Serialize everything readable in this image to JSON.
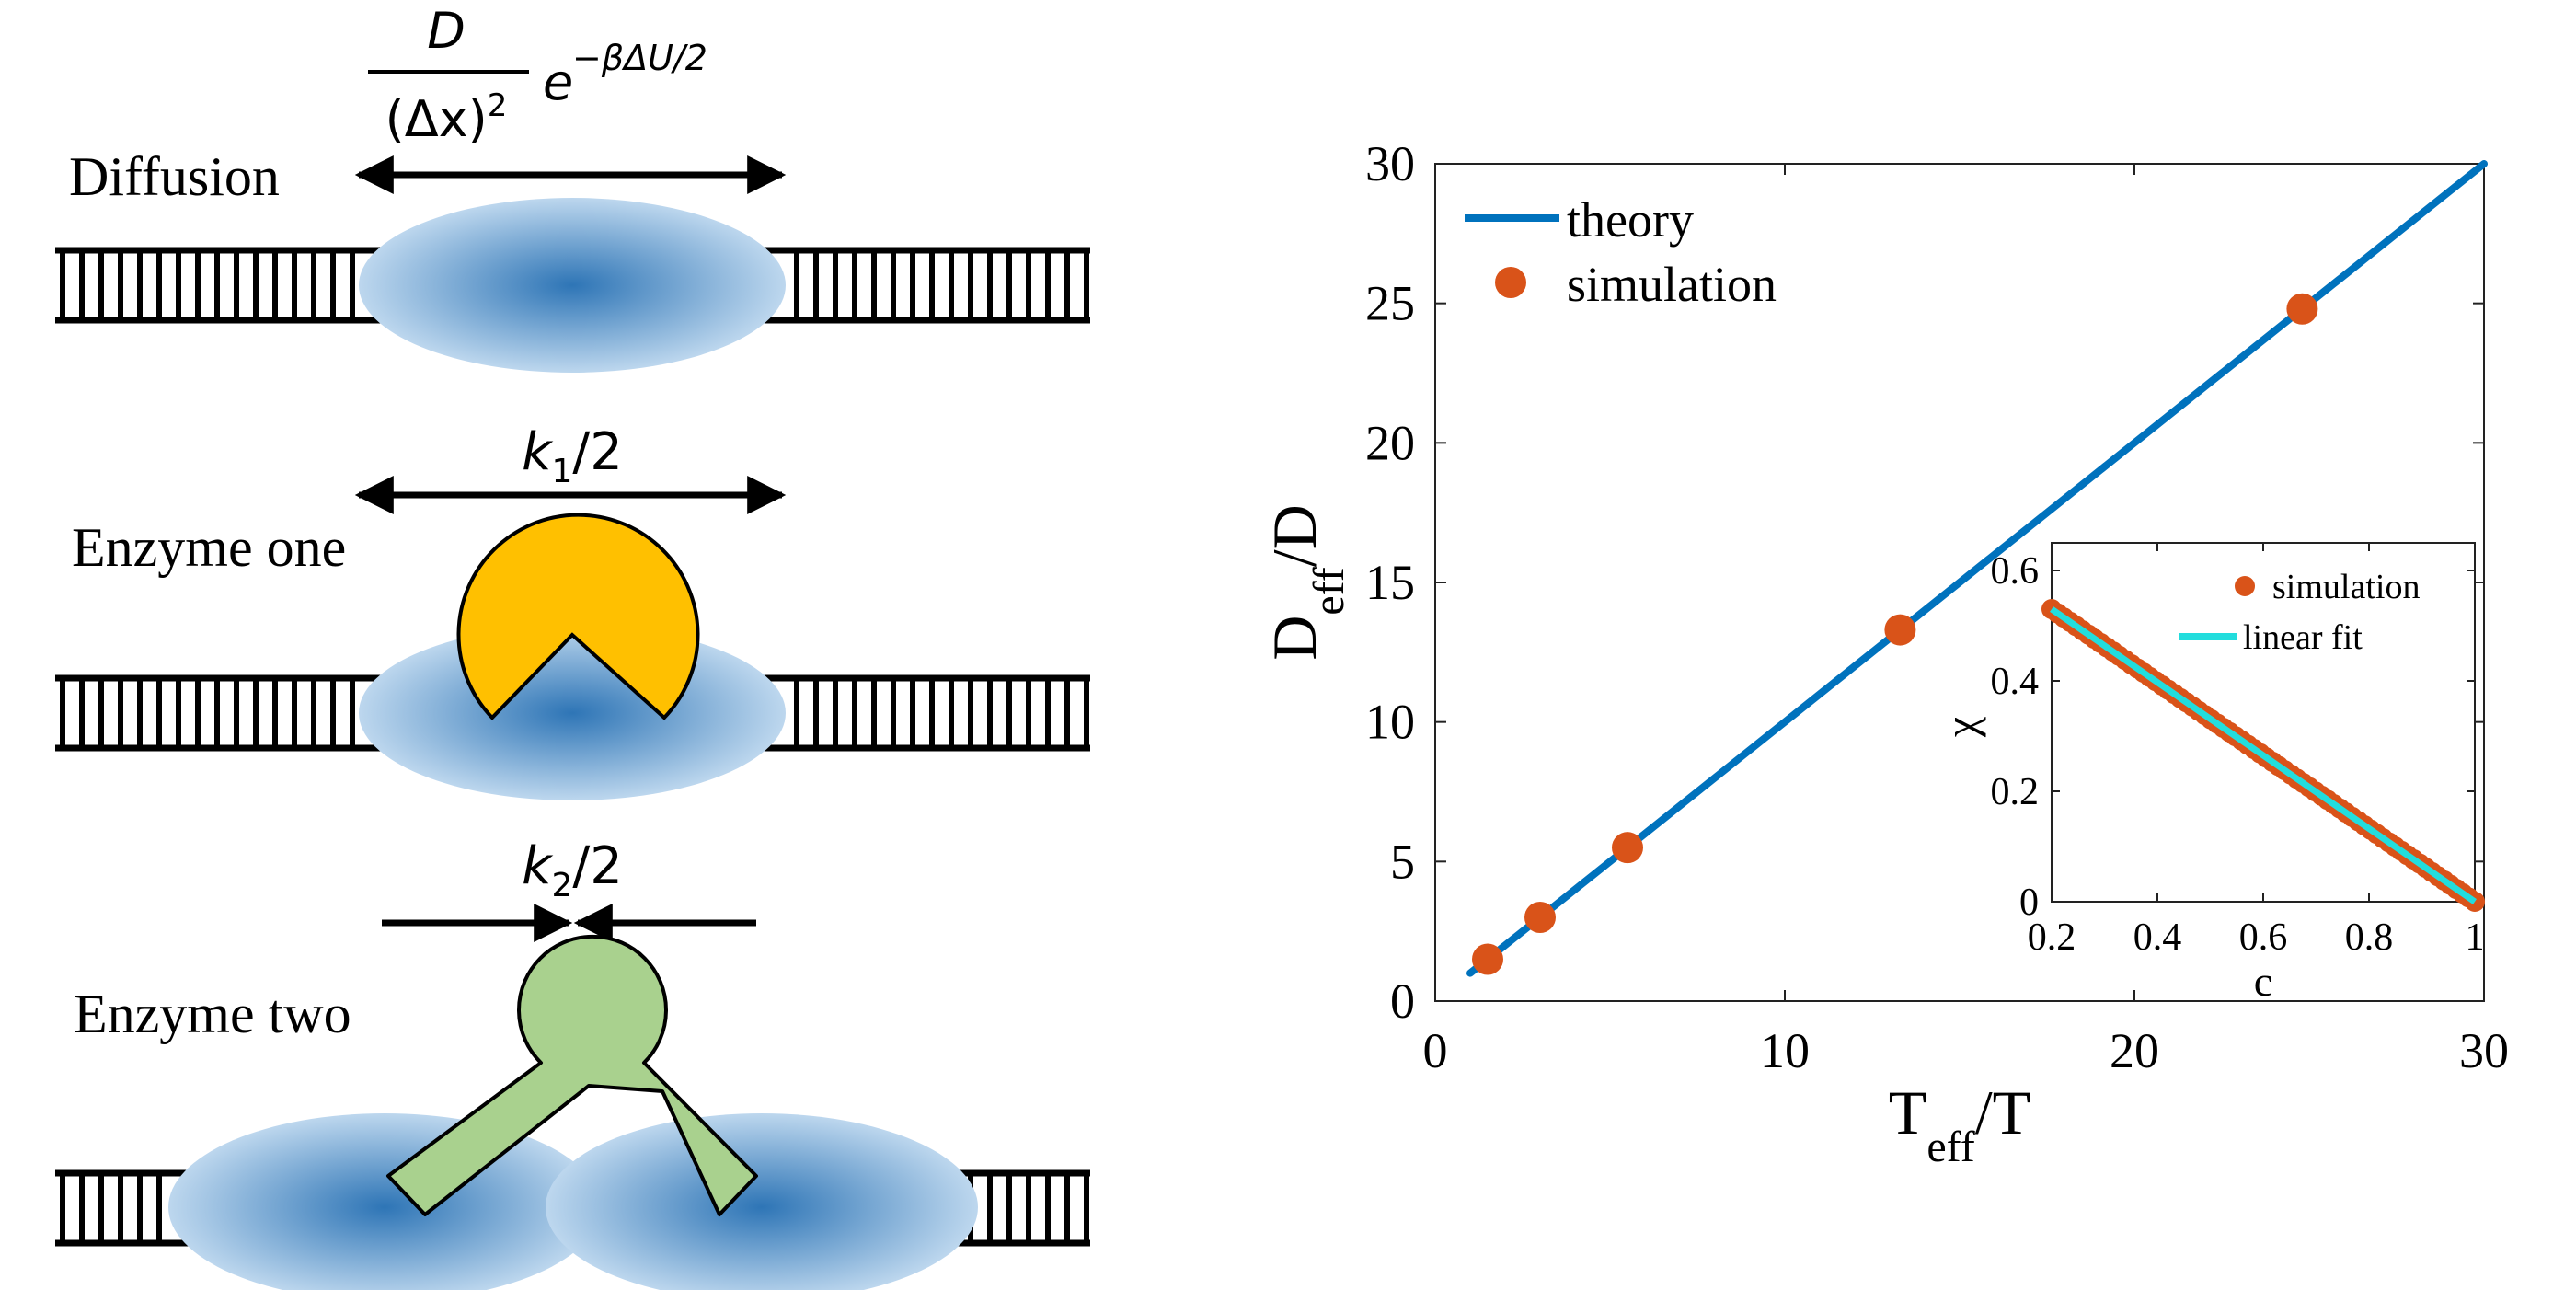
{
  "colors": {
    "theory": "#0072BD",
    "simulation": "#D95319",
    "linear_fit": "#22DDDD",
    "enzyme_one": "#FFC000",
    "enzyme_two": "#A9D18E",
    "blob_center": "#2E75B6",
    "blob_edge": "#BDD7EE"
  },
  "icons": {
    "dna_ladder": "dna-ladder-icon",
    "enzyme_one": "pacman-shape",
    "enzyme_two": "y-shape"
  },
  "schematic": {
    "rows": [
      {
        "label": "Diffusion",
        "rate_numerator": "D",
        "rate_denominator": "(Δx)",
        "rate_denominator_sup": "2",
        "rate_exp_base": "e",
        "rate_exp": "−βΔU/2",
        "arrow": "outward"
      },
      {
        "label": "Enzyme one",
        "rate_main": "k",
        "rate_sub": "1",
        "rate_tail": "/2",
        "arrow": "outward"
      },
      {
        "label": "Enzyme two",
        "rate_main": "k",
        "rate_sub": "2",
        "rate_tail": "/2",
        "arrow": "inward"
      }
    ]
  },
  "chart_data": [
    {
      "type": "line",
      "xlabel_main": "T",
      "xlabel_sub": "eff",
      "xlabel_tail": "/T",
      "ylabel_main": "D",
      "ylabel_sub": "eff",
      "ylabel_tail": "/D",
      "xlim": [
        0,
        30
      ],
      "ylim": [
        0,
        30
      ],
      "xticks": [
        0,
        10,
        20,
        30
      ],
      "yticks": [
        0,
        5,
        10,
        15,
        20,
        25,
        30
      ],
      "legend_position": "top-left",
      "series": [
        {
          "name": "theory",
          "style": "line",
          "x": [
            1,
            30
          ],
          "y": [
            1,
            30
          ]
        },
        {
          "name": "simulation",
          "style": "marker",
          "x": [
            1.5,
            3,
            5.5,
            13.3,
            24.8
          ],
          "y": [
            1.5,
            3,
            5.5,
            13.3,
            24.8
          ]
        }
      ]
    },
    {
      "type": "scatter",
      "inset": true,
      "xlabel": "c",
      "ylabel": "χ",
      "xlim": [
        0.2,
        1
      ],
      "ylim": [
        0,
        0.65
      ],
      "xticks": [
        0.2,
        0.4,
        0.6,
        0.8,
        1
      ],
      "xtick_labels": [
        "0.2",
        "0.4",
        "0.6",
        "0.8",
        "1"
      ],
      "yticks": [
        0,
        0.2,
        0.4,
        0.6
      ],
      "ytick_labels": [
        "0",
        "0.2",
        "0.4",
        "0.6"
      ],
      "legend_position": "top-right",
      "series": [
        {
          "name": "simulation",
          "style": "marker",
          "x_range": [
            0.2,
            1
          ],
          "y_at_start": 0.53,
          "y_at_end": 0
        },
        {
          "name": "linear fit",
          "style": "line",
          "x": [
            0.2,
            1
          ],
          "y": [
            0.53,
            0
          ]
        }
      ]
    }
  ]
}
